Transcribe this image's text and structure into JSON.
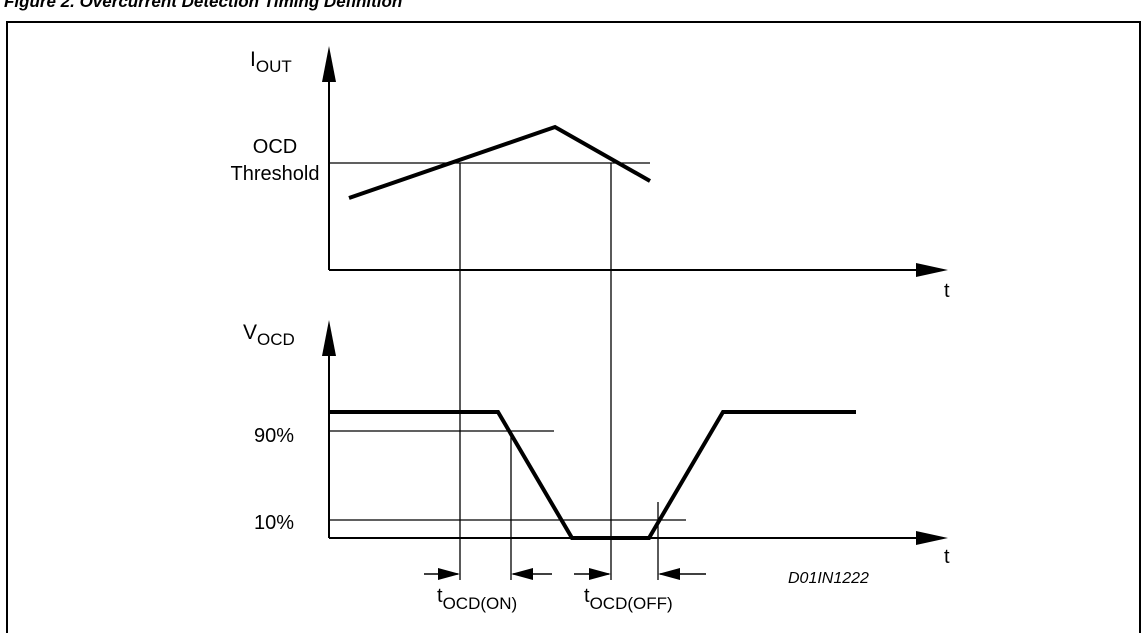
{
  "figure": {
    "title": "Figure 2. Overcurrent Detection Timing Definition",
    "drawing_code": "D01IN1222"
  },
  "top_plot": {
    "y_axis_label": "I",
    "y_axis_subscript": "OUT",
    "x_axis_label": "t",
    "threshold_label_line1": "OCD",
    "threshold_label_line2": "Threshold"
  },
  "bottom_plot": {
    "y_axis_label": "V",
    "y_axis_subscript": "OCD",
    "x_axis_label": "t",
    "level_high_label": "90%",
    "level_low_label": "10%"
  },
  "timing": {
    "on_label": "t",
    "on_subscript": "OCD(ON)",
    "off_label": "t",
    "off_subscript": "OCD(OFF)"
  },
  "colors": {
    "line": "#000000",
    "background": "#ffffff"
  }
}
